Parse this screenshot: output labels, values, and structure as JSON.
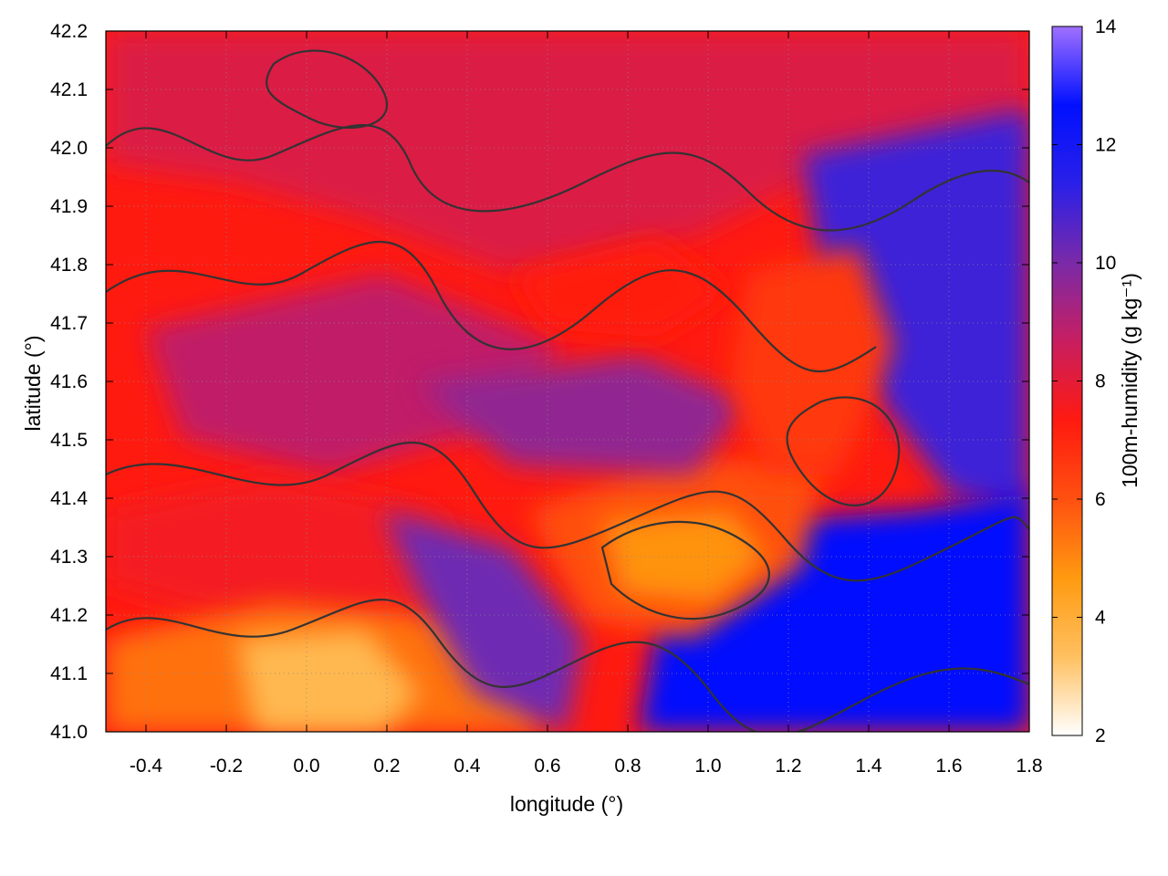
{
  "chart_data": {
    "type": "heatmap",
    "xlabel": "longitude (°)",
    "ylabel": "latitude (°)",
    "colorbar_label": "100m-humidity (g kg⁻¹)",
    "xlim": [
      -0.5,
      1.8
    ],
    "ylim": [
      41.0,
      42.2
    ],
    "x_ticks": [
      "-0.4",
      "-0.2",
      "0.0",
      "0.2",
      "0.4",
      "0.6",
      "0.8",
      "1.0",
      "1.2",
      "1.4",
      "1.6",
      "1.8"
    ],
    "y_ticks": [
      "41.0",
      "41.1",
      "41.2",
      "41.3",
      "41.4",
      "41.5",
      "41.6",
      "41.7",
      "41.8",
      "41.9",
      "42.0",
      "42.1",
      "42.2"
    ],
    "colorbar_range": [
      2,
      14
    ],
    "colorbar_ticks": [
      "2",
      "4",
      "6",
      "8",
      "10",
      "12",
      "14"
    ],
    "colormap": [
      "#ffffff",
      "#ffc060",
      "#ff9a10",
      "#ff5010",
      "#ff1a10",
      "#c81e60",
      "#7a2aa8",
      "#2a20e8",
      "#0010ff",
      "#a070ff"
    ],
    "contour_color": "#333333",
    "grid": "dotted",
    "regions": [
      {
        "value": 8.2
      },
      {
        "value": 8.8
      },
      {
        "value": 7.6
      },
      {
        "value": 11.0
      },
      {
        "value": 12.6
      },
      {
        "value": 6.0
      },
      {
        "value": 4.8
      },
      {
        "value": 5.4
      },
      {
        "value": 9.6
      },
      {
        "value": 10.2
      },
      {
        "value": 6.6
      },
      {
        "value": 7.2
      },
      {
        "value": 3.6
      }
    ]
  }
}
